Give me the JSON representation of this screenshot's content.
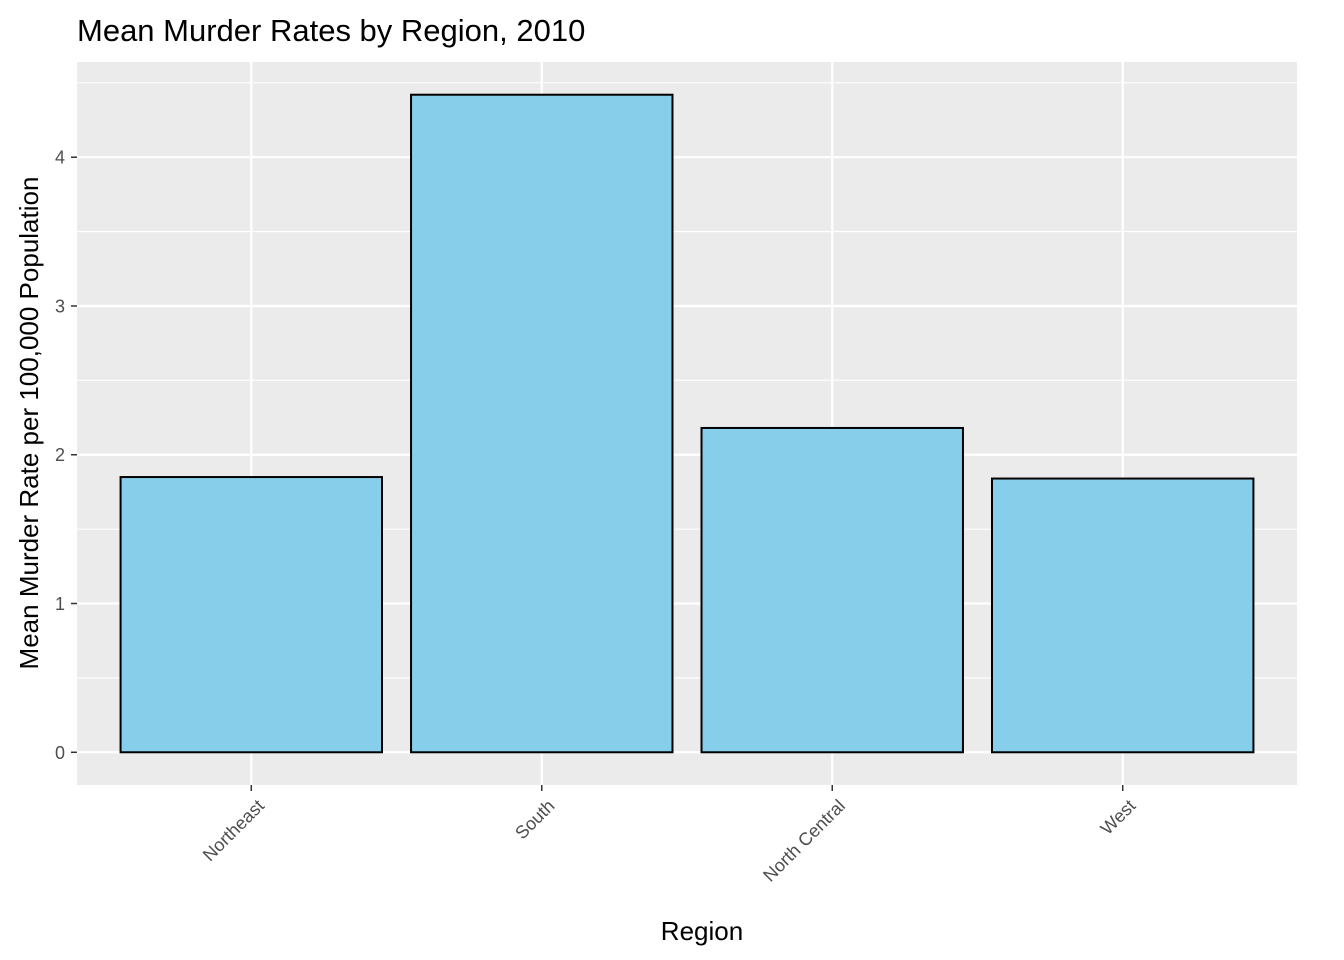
{
  "chart_data": {
    "type": "bar",
    "title": "Mean Murder Rates by Region, 2010",
    "xlabel": "Region",
    "ylabel": "Mean Murder Rate per 100,000 Population",
    "categories": [
      "Northeast",
      "South",
      "North Central",
      "West"
    ],
    "values": [
      1.85,
      4.42,
      2.18,
      1.84
    ],
    "ylim": [
      -0.22,
      4.64
    ],
    "yticks": [
      "0",
      "1",
      "2",
      "3",
      "4"
    ],
    "grid": true,
    "legend": "none",
    "colors": {
      "bar_fill": "#87CEEB",
      "bar_stroke": "#000000",
      "panel_background": "#EBEBEB",
      "grid": "#FFFFFF",
      "tick_text": "#4D4D4D"
    }
  }
}
